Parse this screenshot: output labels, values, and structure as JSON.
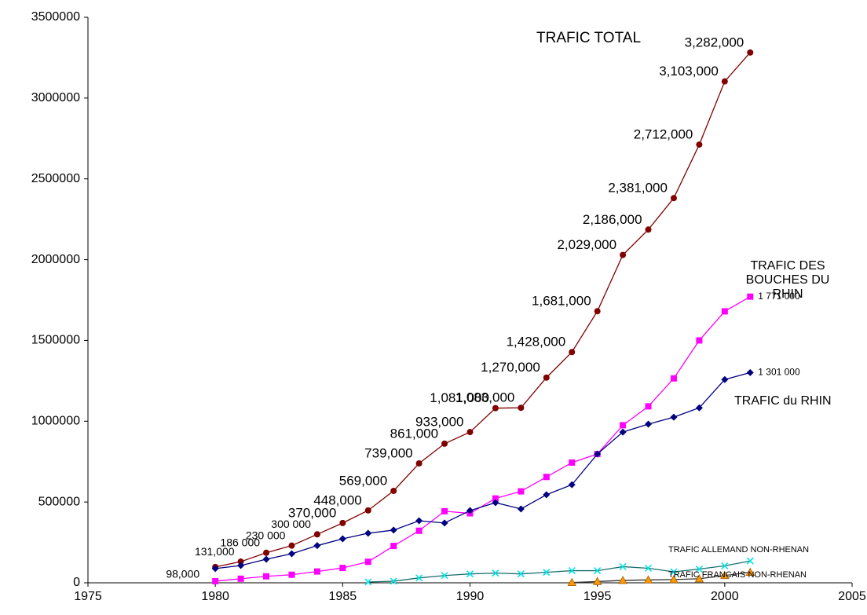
{
  "chart_data": {
    "type": "line",
    "x": [
      1980,
      1981,
      1982,
      1983,
      1984,
      1985,
      1986,
      1987,
      1988,
      1989,
      1990,
      1991,
      1992,
      1993,
      1994,
      1995,
      1996,
      1997,
      1998,
      1999,
      2000,
      2001
    ],
    "xlim": [
      1975,
      2005
    ],
    "xticks": [
      1975,
      1980,
      1985,
      1990,
      1995,
      2000,
      2005
    ],
    "ylim": [
      0,
      3500000
    ],
    "yticks": [
      0,
      500000,
      1000000,
      1500000,
      2000000,
      2500000,
      3000000,
      3500000
    ],
    "series": [
      {
        "name": "TRAFIC TOTAL",
        "color": "#800000",
        "marker": "circle",
        "values": [
          98000,
          131000,
          186000,
          230000,
          300000,
          370000,
          448000,
          569000,
          739000,
          861000,
          933000,
          1081000,
          1083000,
          1270000,
          1428000,
          1681000,
          2029000,
          2186000,
          2381000,
          2712000,
          3103000,
          3282000
        ],
        "value_labels": [
          "98,000",
          "131,000",
          "186 000",
          "230 000",
          "300 000",
          "370,000",
          "448,000",
          "569,000",
          "739,000",
          "861,000",
          "933,000",
          "1,081,000",
          "1,083,000",
          "1,270,000",
          "1,428,000",
          "1,681,000",
          "2,029,000",
          "2,186,000",
          "2,381,000",
          "2,712,000",
          "3,103,000",
          "3,282,000"
        ]
      },
      {
        "name": "TRAFIC DES BOUCHES DU RHIN",
        "color": "#ff00ff",
        "marker": "square",
        "values": [
          10000,
          25000,
          40000,
          50000,
          70000,
          92000,
          130000,
          228000,
          322000,
          443000,
          430000,
          522000,
          566000,
          655000,
          744000,
          797000,
          975000,
          1092000,
          1265000,
          1500000,
          1680000,
          1771000
        ],
        "value_labels": [
          null,
          null,
          null,
          null,
          null,
          null,
          null,
          null,
          null,
          null,
          null,
          null,
          null,
          null,
          null,
          null,
          null,
          null,
          null,
          null,
          null,
          "1 771 000"
        ]
      },
      {
        "name": "TRAFIC du RHIN",
        "color": "#000080",
        "marker": "diamond",
        "values": [
          88000,
          107000,
          146000,
          180000,
          230000,
          272000,
          307000,
          326000,
          384000,
          370000,
          447000,
          496000,
          457000,
          545000,
          607000,
          797000,
          933000,
          982000,
          1025000,
          1083000,
          1258000,
          1301000
        ],
        "value_labels": [
          null,
          null,
          null,
          null,
          null,
          null,
          null,
          null,
          null,
          null,
          null,
          null,
          null,
          null,
          null,
          null,
          null,
          null,
          null,
          null,
          null,
          "1 301 000"
        ]
      },
      {
        "name": "TRAFIC ALLEMAND NON-RHENAN",
        "color": "#00e5e5",
        "line_color": "#1a6f6f",
        "marker": "x",
        "values": [
          null,
          null,
          null,
          null,
          null,
          null,
          5000,
          10000,
          30000,
          45000,
          55000,
          60000,
          55000,
          65000,
          75000,
          75000,
          100000,
          90000,
          68000,
          85000,
          105000,
          135000
        ]
      },
      {
        "name": "TRAFIC FRANCAIS NON-RHENAN",
        "color": "#ff9900",
        "line_color": "#333333",
        "marker": "triangle",
        "values": [
          null,
          null,
          null,
          null,
          null,
          null,
          null,
          null,
          null,
          null,
          null,
          null,
          null,
          null,
          2000,
          8000,
          15000,
          18000,
          20000,
          25000,
          45000,
          65000
        ]
      }
    ]
  }
}
